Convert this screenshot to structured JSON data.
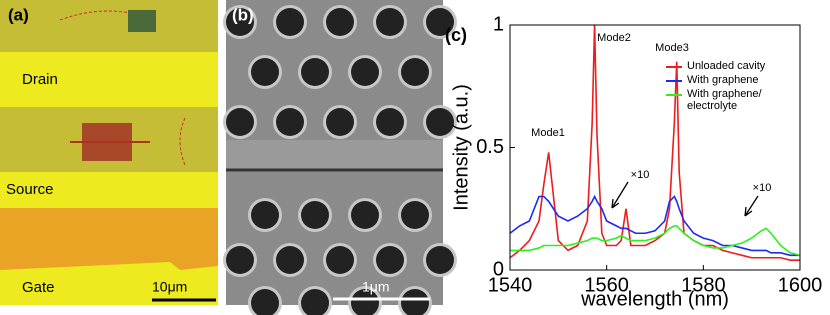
{
  "panel_a": {
    "label": "(a)",
    "drain": "Drain",
    "source": "Source",
    "gate": "Gate",
    "scale": "10μm"
  },
  "panel_b": {
    "label": "(b)",
    "scale": "1μm"
  },
  "chart_data": {
    "type": "line",
    "panel_label": "(c)",
    "xlabel": "wavelength (nm)",
    "ylabel": "Intensity (a.u.)",
    "xlim": [
      1540,
      1600
    ],
    "xticks": [
      1540,
      1560,
      1580,
      1600
    ],
    "ylim": [
      0,
      1
    ],
    "yticks": [
      0,
      0.5,
      1
    ],
    "annotations": [
      "Mode1",
      "Mode2",
      "Mode3",
      "×10",
      "×10"
    ],
    "x": [
      1540,
      1542,
      1544,
      1546,
      1547,
      1548,
      1549,
      1550,
      1552,
      1554,
      1556,
      1557,
      1557.5,
      1558,
      1559,
      1560,
      1562,
      1563,
      1564,
      1565,
      1566,
      1568,
      1570,
      1572,
      1573,
      1574,
      1574.5,
      1575,
      1576,
      1578,
      1580,
      1582,
      1584,
      1586,
      1588,
      1590,
      1592,
      1593,
      1594,
      1596,
      1598,
      1600
    ],
    "series": [
      {
        "name": "Unloaded cavity",
        "color": "#ee1c1c",
        "values": [
          0.05,
          0.08,
          0.12,
          0.2,
          0.35,
          0.48,
          0.3,
          0.12,
          0.08,
          0.1,
          0.2,
          0.6,
          1.0,
          0.55,
          0.15,
          0.1,
          0.1,
          0.12,
          0.25,
          0.1,
          0.1,
          0.1,
          0.12,
          0.15,
          0.25,
          0.6,
          0.85,
          0.4,
          0.15,
          0.12,
          0.1,
          0.1,
          0.08,
          0.07,
          0.06,
          0.05,
          0.05,
          0.05,
          0.05,
          0.05,
          0.04,
          0.04
        ]
      },
      {
        "name": "With graphene",
        "color": "#1c2cee",
        "values": [
          0.15,
          0.18,
          0.2,
          0.3,
          0.3,
          0.28,
          0.25,
          0.22,
          0.2,
          0.22,
          0.25,
          0.28,
          0.3,
          0.28,
          0.25,
          0.2,
          0.18,
          0.17,
          0.17,
          0.16,
          0.15,
          0.15,
          0.16,
          0.2,
          0.28,
          0.3,
          0.28,
          0.25,
          0.2,
          0.15,
          0.13,
          0.12,
          0.1,
          0.1,
          0.09,
          0.08,
          0.08,
          0.08,
          0.07,
          0.07,
          0.06,
          0.06
        ]
      },
      {
        "name": "With graphene/ electrolyte",
        "color": "#2ef01c",
        "values": [
          0.08,
          0.08,
          0.08,
          0.09,
          0.1,
          0.1,
          0.1,
          0.1,
          0.1,
          0.11,
          0.12,
          0.13,
          0.13,
          0.13,
          0.12,
          0.12,
          0.13,
          0.14,
          0.13,
          0.12,
          0.12,
          0.12,
          0.13,
          0.15,
          0.17,
          0.18,
          0.18,
          0.17,
          0.15,
          0.12,
          0.1,
          0.09,
          0.09,
          0.1,
          0.11,
          0.13,
          0.16,
          0.17,
          0.15,
          0.1,
          0.07,
          0.06
        ]
      }
    ]
  }
}
